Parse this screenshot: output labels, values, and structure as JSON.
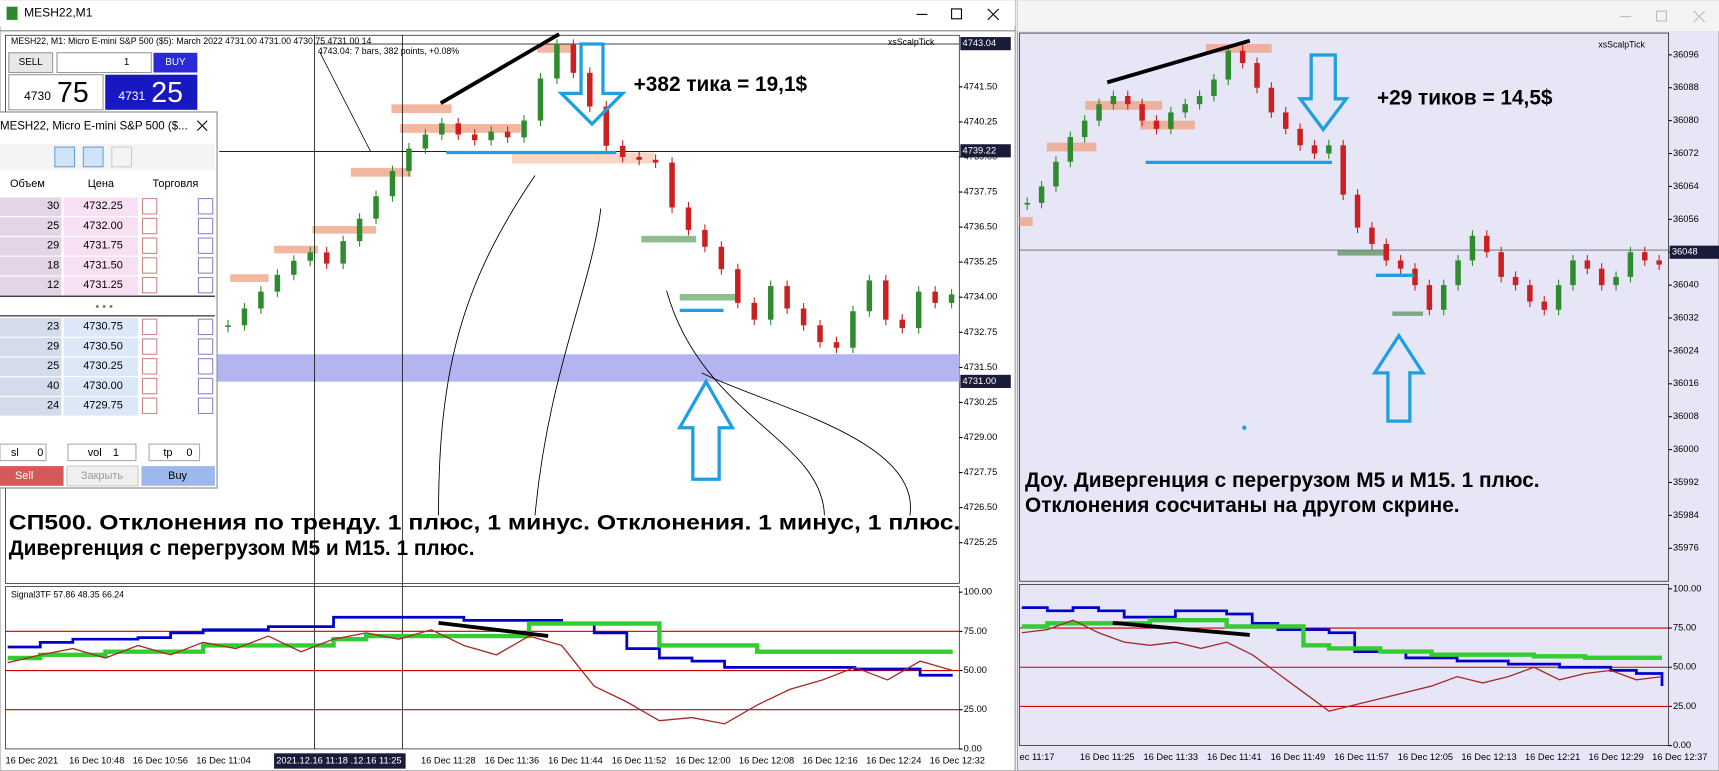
{
  "left_window": {
    "title": "MESH22,M1",
    "header": "MESH22, M1:  Micro E-mini S&P 500 ($5): March 2022  4731.00 4731.00 4730.75 4731.00  14",
    "bars_info": "4743.04: 7 bars, 382 points, +0.08%",
    "tool_label": "xsScalpTick",
    "trade_panel": {
      "sell": "SELL",
      "lots": "1",
      "buy": "BUY",
      "bid_main": "4730",
      "bid_pips": "75",
      "ask_main": "4731",
      "ask_pips": "25"
    },
    "price_chart": {
      "type": "candlestick",
      "ylim": [
        4723.8,
        4743.34
      ],
      "yticks": [
        {
          "value": 4741.5,
          "label": "4741.50"
        },
        4740.25,
        {
          "value": 4739,
          "label": "4739.00"
        },
        4737.75,
        {
          "value": 4736.5,
          "label": "4736.50"
        },
        4735.25,
        {
          "value": 4734,
          "label": "4734.00"
        },
        4732.75,
        {
          "value": 4731.5,
          "label": "4731.50"
        },
        4730.25,
        {
          "value": 4729,
          "label": "4729.00"
        },
        4727.75,
        {
          "value": 4726.5,
          "label": "4726.50"
        },
        4725.25
      ],
      "marked_prices": [
        4743.04,
        4739.22,
        {
          "value": 4731,
          "label": "4731.00"
        }
      ],
      "closes": [
        4733.0,
        4733.6,
        4734.2,
        4734.8,
        4735.3,
        4735.6,
        4735.2,
        4736.0,
        4736.8,
        4737.6,
        4738.5,
        4739.3,
        4739.8,
        4740.2,
        4739.8,
        4739.6,
        4739.9,
        4739.7,
        4740.3,
        4741.8,
        4743.0,
        4742.0,
        4740.8,
        4739.4,
        4739.0,
        4738.9,
        4738.8,
        4737.2,
        4736.4,
        4735.8,
        4735.0,
        4733.8,
        4733.2,
        4734.4,
        4733.6,
        4733.0,
        4732.4,
        4732.2,
        4733.5,
        4734.6,
        4733.2,
        4732.9,
        4734.2,
        4733.8,
        4734.1
      ]
    },
    "indicator": {
      "type": "line",
      "title": "Signal3TF 57.86 48.35 66.24",
      "ylim": [
        0,
        100
      ],
      "yticks": [
        {
          "value": 100,
          "label": "100.00"
        },
        {
          "value": 75,
          "label": "75.00"
        },
        {
          "value": 50,
          "label": "50.00"
        },
        {
          "value": 25,
          "label": "25.00"
        },
        {
          "value": 0,
          "label": "0.00"
        }
      ],
      "levels": [
        25,
        50,
        75
      ],
      "series": [
        {
          "color": "#0000cc",
          "values": [
            65,
            68,
            70,
            70,
            71,
            74,
            76,
            76,
            78,
            78,
            84,
            84,
            84,
            84,
            82,
            82,
            82,
            80,
            74,
            64,
            58,
            56,
            52,
            52,
            52,
            52,
            51,
            51,
            47,
            47
          ]
        },
        {
          "color": "#33cc33",
          "values": [
            58,
            60,
            60,
            62,
            62,
            62,
            66,
            66,
            66,
            66,
            70,
            72,
            72,
            72,
            72,
            72,
            80,
            80,
            80,
            80,
            66,
            66,
            66,
            62,
            62,
            62,
            62,
            62,
            62,
            62
          ]
        },
        {
          "color": "#a52a2a",
          "values": [
            55,
            60,
            64,
            58,
            66,
            60,
            68,
            64,
            72,
            62,
            70,
            74,
            70,
            76,
            66,
            60,
            72,
            66,
            40,
            30,
            18,
            20,
            16,
            28,
            38,
            44,
            52,
            44,
            56,
            50
          ]
        }
      ]
    },
    "time_labels": [
      "16 Dec 2021",
      "16 Dec 10:48",
      "16 Dec 10:56",
      "16 Dec 11:04",
      "16 Dec 11:28",
      "16 Dec 11:36",
      "16 Dec 11:44",
      "16 Dec 11:52",
      "16 Dec 12:00",
      "16 Dec 12:08",
      "16 Dec 12:16",
      "16 Dec 12:24",
      "16 Dec 12:32"
    ],
    "cursor_time": "2021.12.16 11:18 .12.16 11:25",
    "annotations": {
      "profit": "+382 тика = 19,1$",
      "line1": "СП500. Отклонения по тренду. 1 плюс, 1 минус. Отклонения. 1 минус, 1 плюс.",
      "line2": "Дивергенция с перегрузом М5 и М15. 1 плюс."
    }
  },
  "dom_window": {
    "title": "MESH22, Micro E-mini S&P 500 ($...",
    "columns": [
      "Объем",
      "Цена",
      "Торговля"
    ],
    "asks": [
      [
        30,
        "4732.25"
      ],
      [
        25,
        "4732.00"
      ],
      [
        29,
        "4731.75"
      ],
      [
        18,
        "4731.50"
      ],
      [
        12,
        "4731.25"
      ]
    ],
    "separator": "• • •",
    "bids": [
      [
        23,
        "4730.75"
      ],
      [
        29,
        "4730.50"
      ],
      [
        25,
        "4730.25"
      ],
      [
        40,
        "4730.00"
      ],
      [
        24,
        "4729.75"
      ]
    ],
    "sl_label": "sl",
    "sl_value": 0,
    "vol_label": "vol",
    "vol_value": 1,
    "tp_label": "tp",
    "tp_value": 0,
    "buttons": [
      "Sell",
      "Закрыть",
      "Buy"
    ]
  },
  "right_window": {
    "tool_label": "xsScalpTick",
    "price_chart": {
      "type": "candlestick",
      "ylim": [
        35968,
        36101.3
      ],
      "yticks": [
        36096,
        36088,
        36080,
        36072,
        36064,
        36056,
        36048,
        36040,
        36032,
        36024,
        36016,
        36008,
        36000,
        35992,
        35984,
        35976
      ],
      "marked_prices": [
        36048
      ],
      "closes": [
        36060,
        36064,
        36070,
        36076,
        36080,
        36084,
        36086,
        36084,
        36080,
        36078,
        36082,
        36084,
        36086,
        36090,
        36097,
        36094,
        36088,
        36082,
        36078,
        36074,
        36072,
        36074,
        36062,
        36054,
        36050,
        36046,
        36044,
        36040,
        36034,
        36040,
        36046,
        36052,
        36048,
        36042,
        36040,
        36036,
        36034,
        36040,
        36046,
        36044,
        36040,
        36042,
        36048,
        36046,
        36045
      ]
    },
    "indicator": {
      "type": "line",
      "ylim": [
        0,
        100
      ],
      "yticks": [
        {
          "value": 100,
          "label": "100.00"
        },
        {
          "value": 75,
          "label": "75.00"
        },
        {
          "value": 50,
          "label": "50.00"
        },
        {
          "value": 25,
          "label": "25.00"
        },
        {
          "value": 0,
          "label": "0.00"
        }
      ],
      "levels": [
        25,
        50,
        75
      ],
      "series": [
        {
          "color": "#0000cc",
          "values": [
            88,
            86,
            88,
            86,
            82,
            82,
            86,
            86,
            84,
            78,
            74,
            74,
            72,
            60,
            60,
            56,
            56,
            54,
            54,
            52,
            52,
            50,
            50,
            48,
            46,
            38
          ]
        },
        {
          "color": "#33cc33",
          "values": [
            76,
            78,
            78,
            78,
            78,
            80,
            80,
            80,
            76,
            76,
            76,
            64,
            62,
            62,
            60,
            60,
            58,
            58,
            58,
            58,
            57,
            57,
            56,
            56,
            56,
            56
          ]
        },
        {
          "color": "#a52a2a",
          "values": [
            72,
            74,
            80,
            72,
            66,
            64,
            66,
            62,
            66,
            58,
            46,
            34,
            22,
            26,
            30,
            34,
            38,
            44,
            40,
            44,
            50,
            42,
            46,
            48,
            42,
            44
          ]
        }
      ]
    },
    "time_labels": [
      "ec 11:17",
      "16 Dec 11:25",
      "16 Dec 11:33",
      "16 Dec 11:41",
      "16 Dec 11:49",
      "16 Dec 11:57",
      "16 Dec 12:05",
      "16 Dec 12:13",
      "16 Dec 12:21",
      "16 Dec 12:29",
      "16 Dec 12:37"
    ],
    "annotations": {
      "profit": "+29 тиков = 14,5$",
      "line1": "Доу. Дивергенция с перегрузом М5 и М15. 1 плюс.",
      "line2": "Отклонения сосчитаны на другом скрине."
    }
  }
}
